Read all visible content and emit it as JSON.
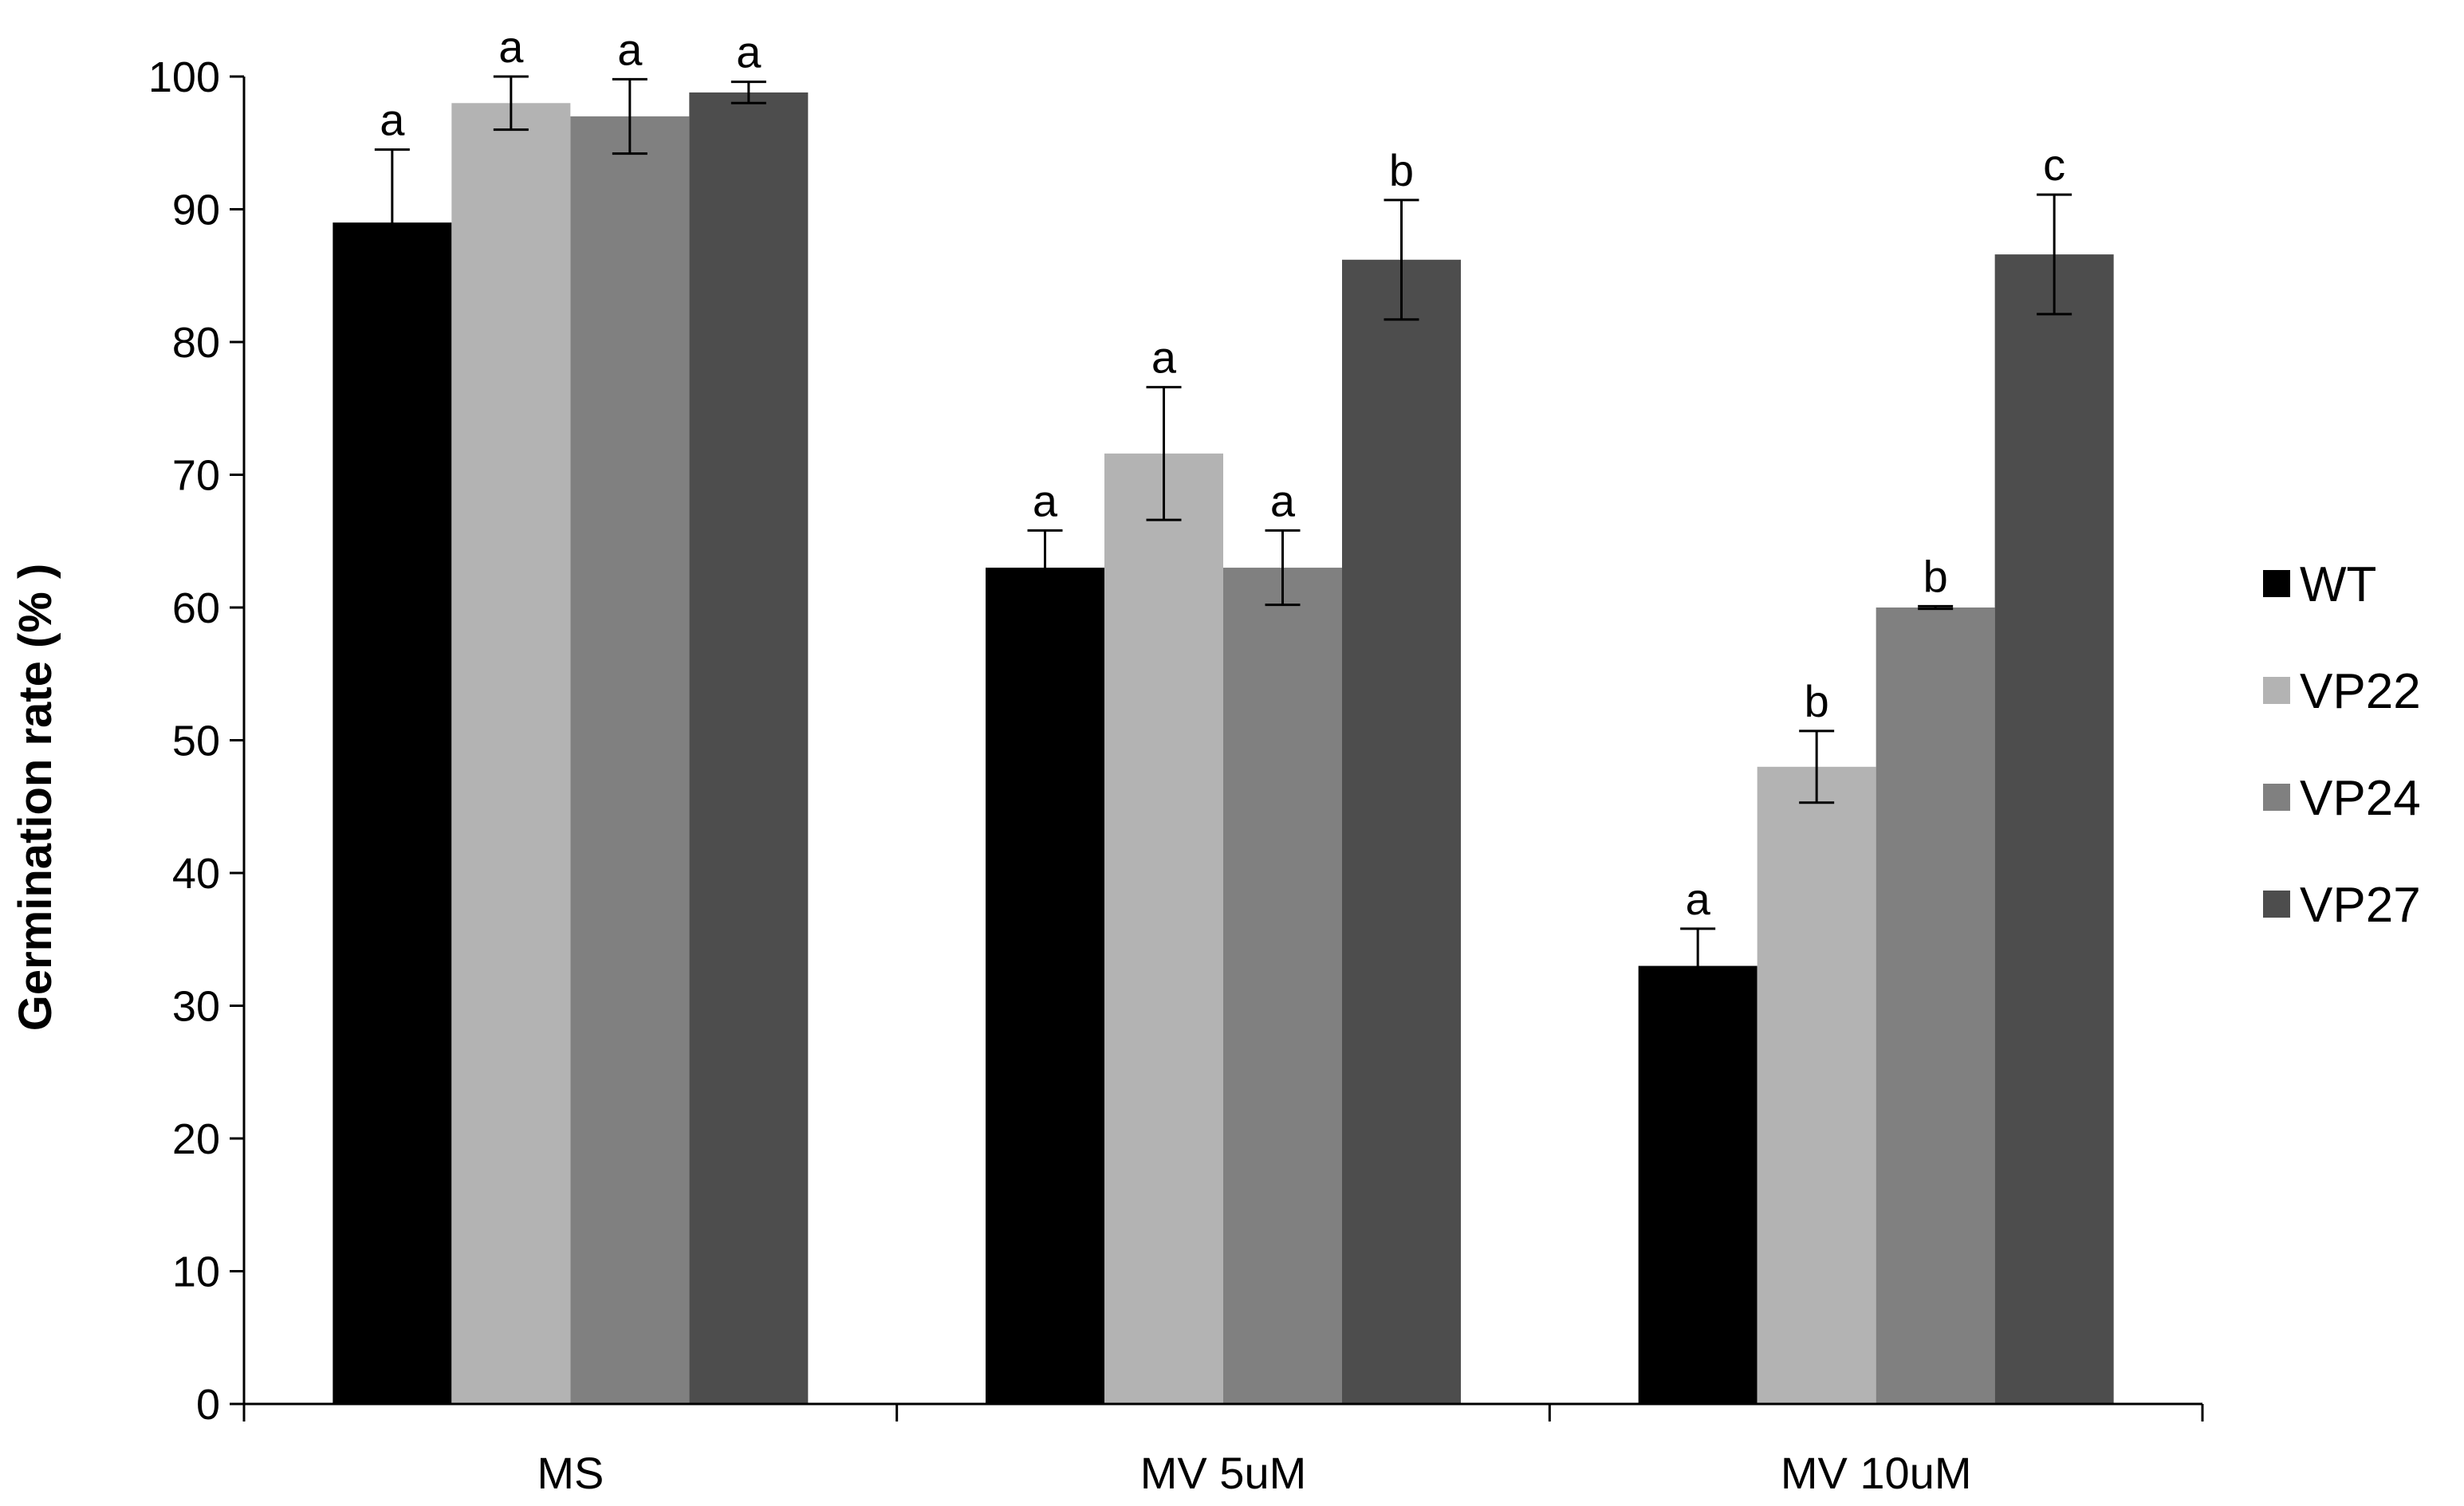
{
  "chart_data": {
    "type": "bar",
    "title": "",
    "xlabel": "",
    "ylabel": "Germination rate (% )",
    "ylim": [
      0,
      100
    ],
    "yticks": [
      "0",
      "10",
      "20",
      "30",
      "40",
      "50",
      "60",
      "70",
      "80",
      "90",
      "100"
    ],
    "categories": [
      "MS",
      "MV 5uM",
      "MV 10uM"
    ],
    "legend_position": "right",
    "grid": false,
    "series": [
      {
        "name": "WT",
        "color": "#000000",
        "values": [
          89,
          63,
          33
        ],
        "errors": [
          5.5,
          2.8,
          2.8
        ],
        "significance": [
          "a",
          "a",
          "a"
        ]
      },
      {
        "name": "VP22",
        "color": "#b3b3b3",
        "values": [
          98,
          71.6,
          48
        ],
        "errors": [
          2,
          5,
          2.7
        ],
        "significance": [
          "a",
          "a",
          "b"
        ]
      },
      {
        "name": "VP24",
        "color": "#808080",
        "values": [
          97,
          63,
          60
        ],
        "errors": [
          2.8,
          2.8,
          0.1
        ],
        "significance": [
          "a",
          "a",
          "b"
        ]
      },
      {
        "name": "VP27",
        "color": "#4d4d4d",
        "values": [
          98.8,
          86.2,
          86.6
        ],
        "errors": [
          0.8,
          4.5,
          4.5
        ],
        "significance": [
          "a",
          "b",
          "c"
        ]
      }
    ]
  }
}
